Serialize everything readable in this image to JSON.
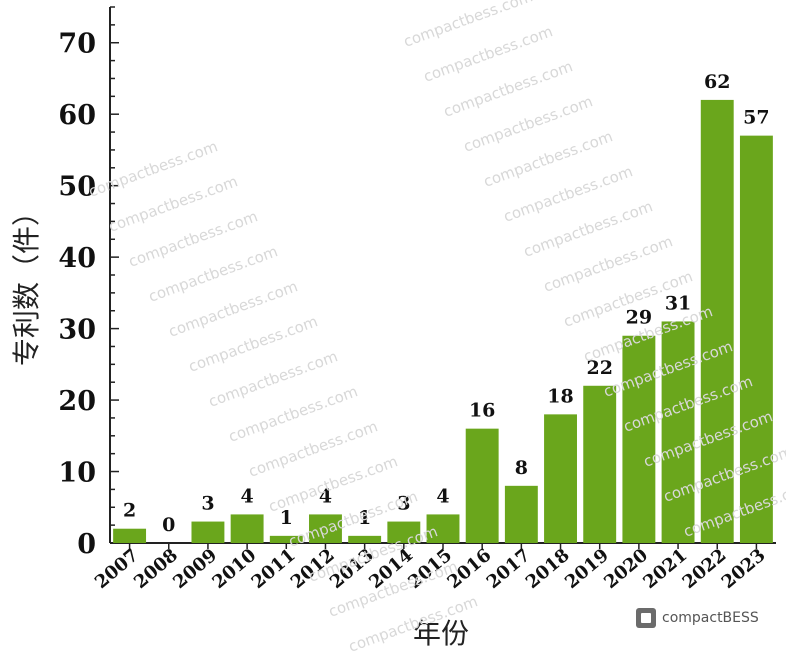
{
  "chart_data": {
    "type": "bar",
    "categories": [
      "2007",
      "2008",
      "2009",
      "2010",
      "2011",
      "2012",
      "2013",
      "2014",
      "2015",
      "2016",
      "2017",
      "2018",
      "2019",
      "2020",
      "2021",
      "2022",
      "2023"
    ],
    "values": [
      2,
      0,
      3,
      4,
      1,
      4,
      1,
      3,
      4,
      16,
      8,
      18,
      22,
      29,
      31,
      62,
      57
    ],
    "xlabel": "年份",
    "ylabel": "专利数（件）",
    "ylim": [
      0,
      75
    ],
    "yticks": [
      0,
      10,
      20,
      30,
      40,
      50,
      60,
      70
    ],
    "grid": false,
    "bar_color": "#6aa61c",
    "data_labels": true
  },
  "brand": {
    "text": "compactBESS"
  },
  "watermark": {
    "text": "compactbess.com"
  }
}
